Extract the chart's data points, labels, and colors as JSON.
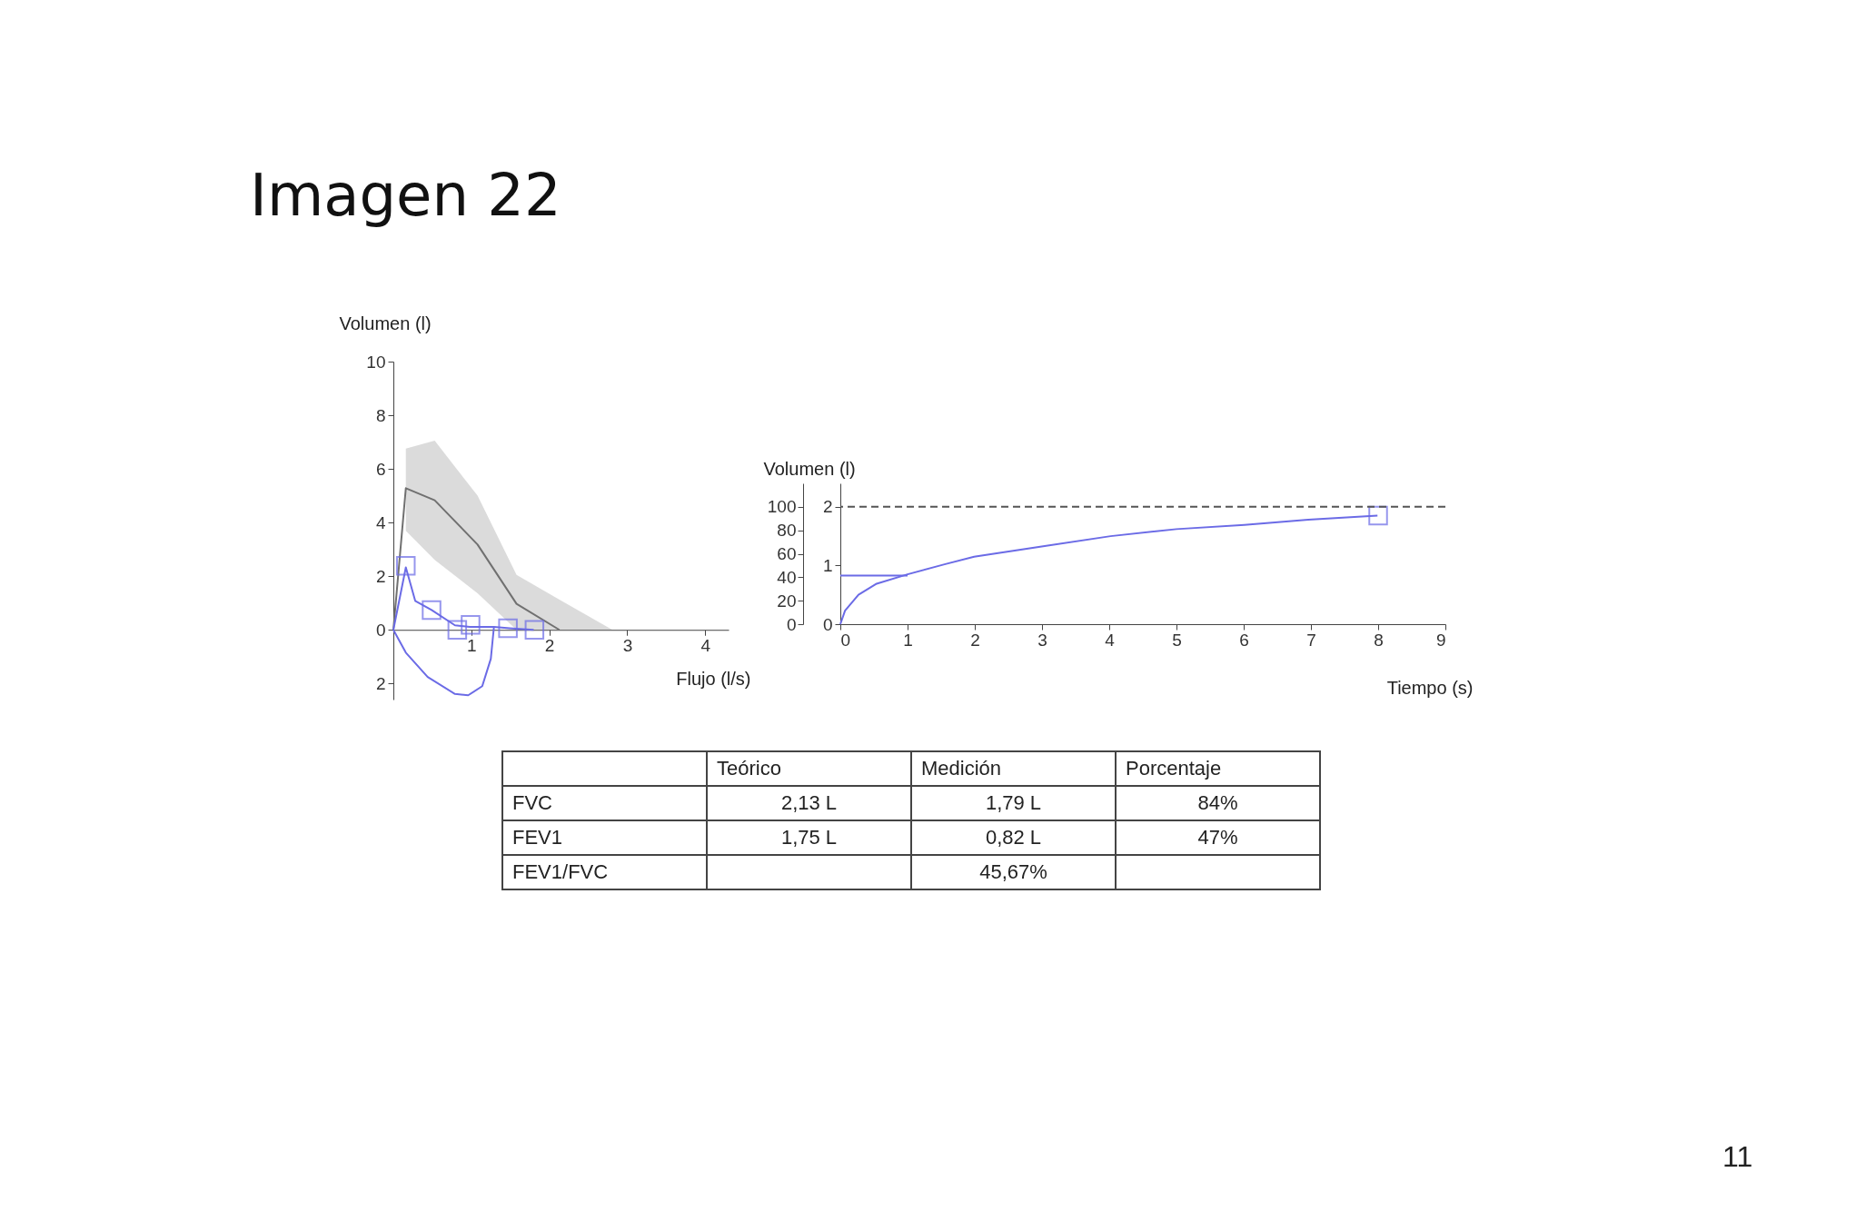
{
  "chart_data": [
    {
      "type": "line",
      "title": "Imagen 22",
      "xlabel": "Flujo (l/s)",
      "ylabel": "Volumen (l)",
      "xlim": [
        0,
        4.3
      ],
      "ylim": [
        -2.6,
        10
      ],
      "xticks": [
        {
          "value": 0,
          "label": null
        },
        1,
        2,
        3,
        4
      ],
      "yticks": [
        {
          "value": -2,
          "label": "2"
        },
        0,
        2,
        4,
        6,
        8,
        10
      ],
      "series": [
        {
          "type": "line",
          "color": "#707070",
          "x": [
            0,
            0.16,
            0.53,
            1.08,
            1.58,
            2.13,
            2.81
          ],
          "values": [
            0,
            5.28,
            4.83,
            3.18,
            0.97,
            0,
            null
          ],
          "lower": [
            null,
            3.69,
            2.61,
            1.36,
            0,
            0,
            0
          ],
          "upper": [
            null,
            6.76,
            7.05,
            5.0,
            2.05,
            1.13,
            0
          ]
        },
        {
          "type": "line",
          "color": "#6b6be6",
          "x": [
            0,
            0.16,
            0.28,
            0.49,
            0.79,
            0.98,
            1.29,
            1.49,
            1.8
          ],
          "values": [
            0,
            2.33,
            1.08,
            0.74,
            0.17,
            0.11,
            0.11,
            0.06,
            0
          ]
        },
        {
          "type": "line",
          "color": "#6b6be6",
          "x": [
            0,
            0.16,
            0.44,
            0.79,
            0.96,
            1.14,
            1.25,
            1.29
          ],
          "values": [
            0,
            -0.85,
            -1.76,
            -2.39,
            -2.44,
            -2.1,
            -1.08,
            0.11
          ]
        },
        {
          "type": "scatter",
          "marker": "square",
          "color": "#6b6be6",
          "x": [
            0.16,
            0.49,
            0.82,
            0.99,
            1.47,
            1.81
          ],
          "values": [
            2.39,
            0.74,
            0,
            0.19,
            0.06,
            0
          ]
        }
      ]
    },
    {
      "type": "line",
      "xlabel": "Tiempo (s)",
      "ylabel": "Volumen (l)",
      "xlim": [
        0,
        9
      ],
      "ylim": [
        0,
        2.4
      ],
      "xticks": [
        0,
        1,
        2,
        3,
        4,
        5,
        6,
        7,
        8,
        9
      ],
      "yticks": [
        0,
        1,
        2
      ],
      "y2lim": [
        0,
        120
      ],
      "y2ticks": [
        0,
        20,
        40,
        60,
        80,
        100
      ],
      "ref_lines": [
        {
          "axis": "y",
          "value": 2,
          "line_style": "dashed",
          "color": "#555555"
        }
      ],
      "series": [
        {
          "type": "line",
          "color": "#6b6be6",
          "x": [
            0,
            0.07,
            0.27,
            0.54,
            1.0,
            1.55,
            1.99,
            3.04,
            4.02,
            5.0,
            6.01,
            6.96,
            7.99
          ],
          "values": [
            0,
            0.23,
            0.5,
            0.69,
            0.85,
            1.02,
            1.15,
            1.33,
            1.5,
            1.62,
            1.69,
            1.78,
            1.85
          ]
        },
        {
          "type": "line",
          "color": "#6b6be6",
          "x": [
            0,
            1
          ],
          "values": [
            0.83,
            0.83
          ]
        },
        {
          "type": "scatter",
          "marker": "square",
          "color": "#6b6be6",
          "x": [
            8
          ],
          "values": [
            1.85
          ]
        }
      ]
    },
    {
      "type": "other",
      "categories": [
        "Teórico",
        "Medición",
        "Porcentaje"
      ],
      "y_categories": [
        "FVC",
        "FEV1",
        "FEV1/FVC"
      ],
      "cell_labels": [
        [
          "2,13 L",
          "1,79 L",
          "84%"
        ],
        [
          "1,75 L",
          "0,82 L",
          "47%"
        ],
        [
          null,
          "45,67%",
          null
        ]
      ],
      "annotations": [
        "11"
      ]
    }
  ]
}
